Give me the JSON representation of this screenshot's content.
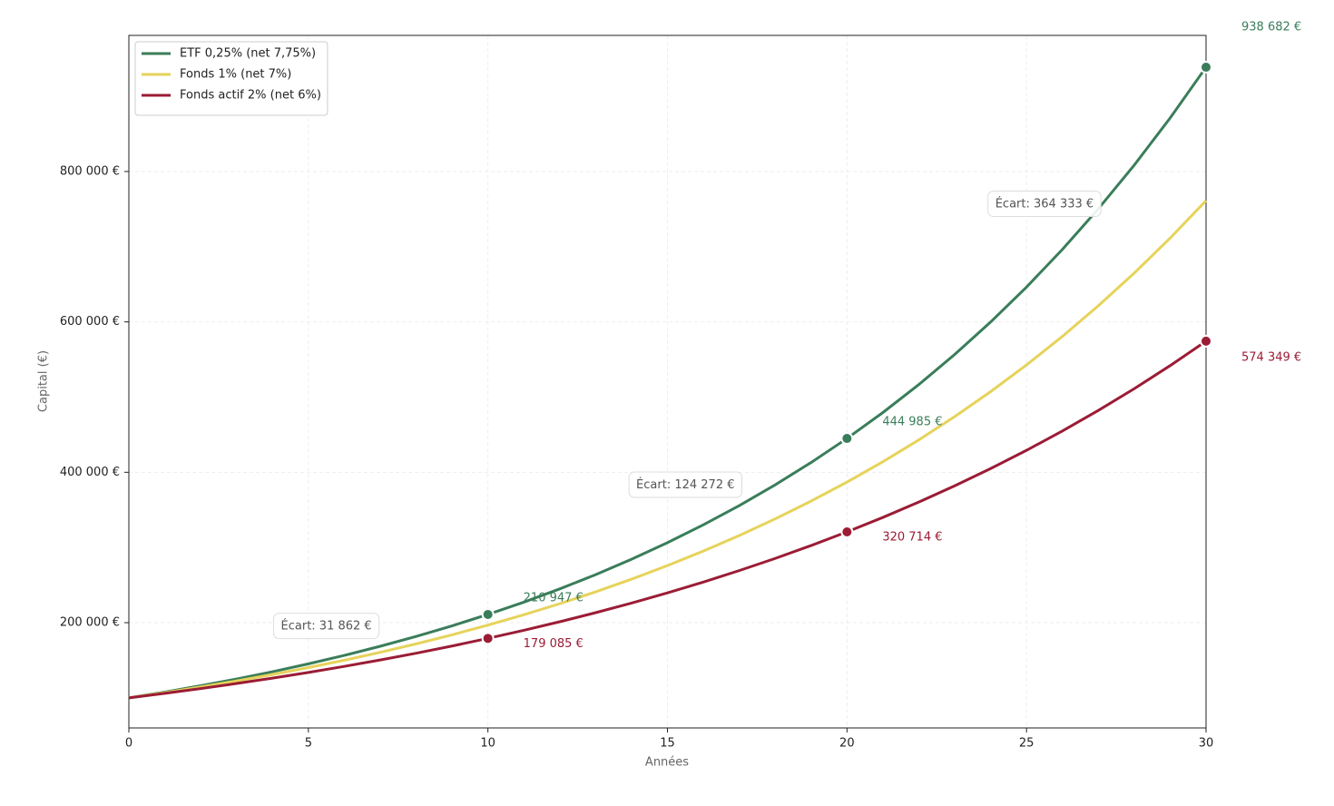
{
  "chart_data": {
    "type": "line",
    "x_label": "Années",
    "y_label": "Capital (€)",
    "x": [
      0,
      1,
      2,
      3,
      4,
      5,
      6,
      7,
      8,
      9,
      10,
      11,
      12,
      13,
      14,
      15,
      16,
      17,
      18,
      19,
      20,
      21,
      22,
      23,
      24,
      25,
      26,
      27,
      28,
      29,
      30
    ],
    "series": [
      {
        "name": "ETF 0,25% (net 7,75%)",
        "color": "#3a7d5a",
        "values": [
          100000,
          107750,
          116101,
          125098,
          134794,
          145240,
          156496,
          168625,
          181693,
          195774,
          210947,
          227295,
          244910,
          263891,
          284343,
          306379,
          330123,
          355708,
          383275,
          412979,
          444985,
          479471,
          516630,
          556669,
          599811,
          646296,
          696384,
          750354,
          808507,
          871166,
          938682
        ],
        "value_labels": [
          null,
          null,
          null,
          null,
          null,
          null,
          null,
          null,
          null,
          null,
          "210 947 €",
          null,
          null,
          null,
          null,
          null,
          null,
          null,
          null,
          null,
          "444 985 €",
          null,
          null,
          null,
          null,
          null,
          null,
          null,
          null,
          null,
          "938 682 €"
        ]
      },
      {
        "name": "Fonds 1% (net 7%)",
        "color": "#e6d35a",
        "values": [
          100000,
          107000,
          114490,
          122504,
          131080,
          140255,
          150073,
          160578,
          171819,
          183846,
          196715,
          210485,
          225219,
          240985,
          257853,
          275903,
          295216,
          315882,
          337993,
          361653,
          386968,
          414056,
          443040,
          474053,
          507237,
          542743,
          580735,
          621387,
          664884,
          711426,
          761226
        ]
      },
      {
        "name": "Fonds actif 2% (net 6%)",
        "color": "#9b1c35",
        "values": [
          100000,
          106000,
          112360,
          119102,
          126248,
          133823,
          141852,
          150363,
          159385,
          168948,
          179085,
          189830,
          201220,
          213293,
          226090,
          239656,
          254035,
          269277,
          285434,
          302560,
          320714,
          339956,
          360354,
          381975,
          404894,
          429187,
          454938,
          482235,
          511169,
          541839,
          574349
        ],
        "value_labels": [
          null,
          null,
          null,
          null,
          null,
          null,
          null,
          null,
          null,
          null,
          "179 085 €",
          null,
          null,
          null,
          null,
          null,
          null,
          null,
          null,
          null,
          "320 714 €",
          null,
          null,
          null,
          null,
          null,
          null,
          null,
          null,
          null,
          "574 349 €"
        ]
      }
    ],
    "annotations": [
      {
        "x": 10,
        "text": "Écart: 31 862 €"
      },
      {
        "x": 20,
        "text": "Écart: 124 272 €"
      },
      {
        "x": 30,
        "text": "Écart: 364 333 €"
      }
    ],
    "xlim": [
      0,
      30
    ],
    "xticks": [
      0,
      5,
      10,
      15,
      20,
      25,
      30
    ],
    "ylim": [
      60000,
      981000
    ],
    "yticks": [
      {
        "value": 200000,
        "label": "200 000 €"
      },
      {
        "value": 400000,
        "label": "400 000 €"
      },
      {
        "value": 600000,
        "label": "600 000 €"
      },
      {
        "value": 800000,
        "label": "800 000 €"
      }
    ],
    "grid": true,
    "legend": "upper-left"
  }
}
